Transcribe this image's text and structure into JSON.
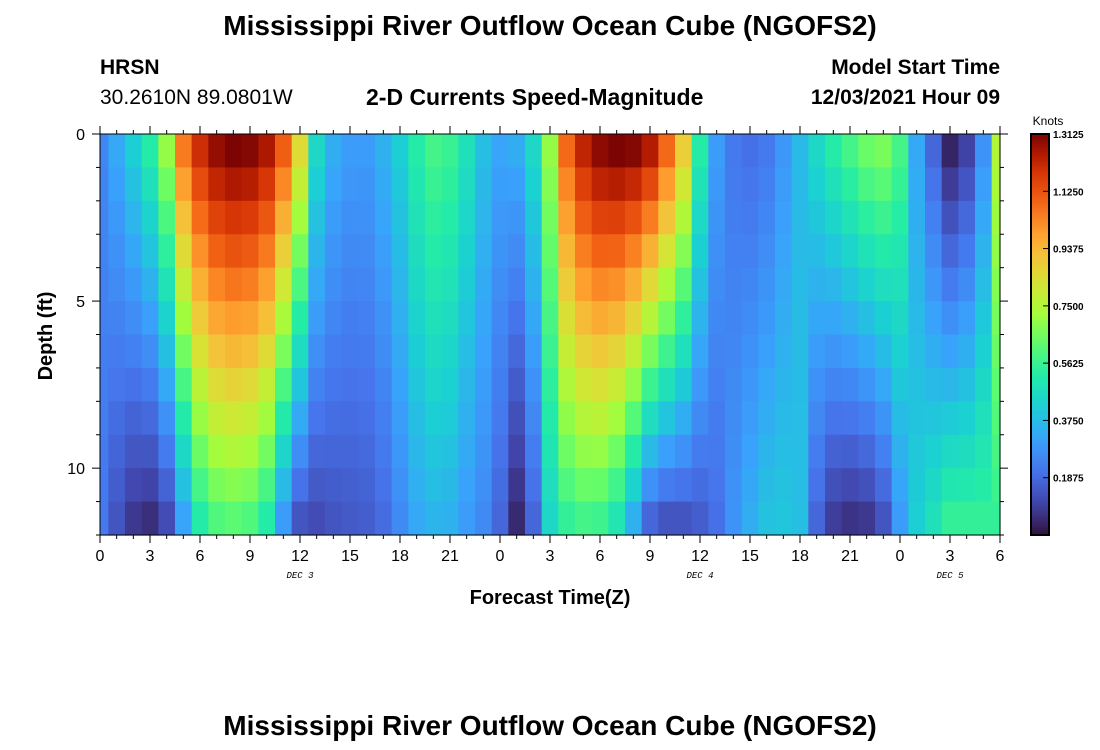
{
  "titles": {
    "main": "Mississippi River Outflow Ocean Cube (NGOFS2)",
    "second": "Mississippi River Outflow Ocean Cube (NGOFS2)"
  },
  "station": {
    "name": "HRSN",
    "coords": "30.2610N  89.0801W"
  },
  "model": {
    "label": "Model Start Time",
    "value": "12/03/2021 Hour 09"
  },
  "chart_data": {
    "type": "heatmap",
    "title": "2-D Currents Speed-Magnitude",
    "xlabel": "Forecast Time(Z)",
    "ylabel": "Depth (ft)",
    "x_tick_labels": [
      "0",
      "3",
      "6",
      "9",
      "12",
      "15",
      "18",
      "21",
      "0",
      "3",
      "6",
      "9",
      "12",
      "15",
      "18",
      "21",
      "0",
      "3",
      "6"
    ],
    "x_range_hours": [
      0,
      54
    ],
    "date_labels": [
      {
        "text": "DEC 3",
        "hour": 12
      },
      {
        "text": "DEC 4",
        "hour": 36
      },
      {
        "text": "DEC 5",
        "hour": 51
      }
    ],
    "y_tick_labels": [
      "0",
      "5",
      "10"
    ],
    "y_range_ft": [
      0,
      12
    ],
    "y_inverted": true,
    "colorbar": {
      "label": "Knots",
      "min": 0.0,
      "max": 1.3125,
      "tick_values": [
        1.3125,
        1.125,
        0.9375,
        0.75,
        0.5625,
        0.375,
        0.1875
      ],
      "tick_labels": [
        "1.3125",
        "1.1250",
        "0.9375",
        "0.7500",
        "0.5625",
        "0.3750",
        "0.1875"
      ]
    },
    "depth_levels_ft": [
      0.5,
      1.5,
      2.5,
      3.5,
      4.5,
      5.5,
      6.5,
      7.5,
      8.5,
      9.5,
      10.5,
      11.5
    ],
    "speed_profiles": {
      "description_units": "knots, surface value and bottom value per forecast hour",
      "hours": [
        0,
        1,
        2,
        3,
        4,
        5,
        6,
        7,
        8,
        9,
        10,
        11,
        12,
        13,
        14,
        15,
        16,
        17,
        18,
        19,
        20,
        21,
        22,
        23,
        24,
        25,
        26,
        27,
        28,
        29,
        30,
        31,
        32,
        33,
        34,
        35,
        36,
        37,
        38,
        39,
        40,
        41,
        42,
        43,
        44,
        45,
        46,
        47,
        48,
        49,
        50,
        51,
        52,
        53,
        54
      ],
      "surface_knots": [
        0.25,
        0.33,
        0.42,
        0.52,
        0.7,
        1.05,
        1.2,
        1.28,
        1.31,
        1.3,
        1.25,
        1.1,
        0.85,
        0.45,
        0.34,
        0.3,
        0.3,
        0.35,
        0.42,
        0.52,
        0.58,
        0.56,
        0.48,
        0.38,
        0.32,
        0.34,
        0.45,
        0.7,
        1.08,
        1.22,
        1.29,
        1.31,
        1.3,
        1.24,
        1.08,
        0.88,
        0.52,
        0.3,
        0.22,
        0.2,
        0.22,
        0.29,
        0.37,
        0.45,
        0.52,
        0.58,
        0.64,
        0.66,
        0.58,
        0.33,
        0.18,
        0.04,
        0.1,
        0.28,
        0.75
      ],
      "bottom_knots": [
        0.22,
        0.14,
        0.08,
        0.06,
        0.12,
        0.32,
        0.52,
        0.6,
        0.62,
        0.6,
        0.52,
        0.3,
        0.14,
        0.12,
        0.14,
        0.15,
        0.16,
        0.19,
        0.26,
        0.33,
        0.36,
        0.35,
        0.3,
        0.26,
        0.18,
        0.05,
        0.18,
        0.45,
        0.55,
        0.58,
        0.57,
        0.5,
        0.35,
        0.18,
        0.14,
        0.14,
        0.16,
        0.2,
        0.28,
        0.34,
        0.39,
        0.4,
        0.38,
        0.18,
        0.09,
        0.07,
        0.08,
        0.14,
        0.3,
        0.42,
        0.48,
        0.55,
        0.55,
        0.55,
        0.55
      ]
    }
  }
}
